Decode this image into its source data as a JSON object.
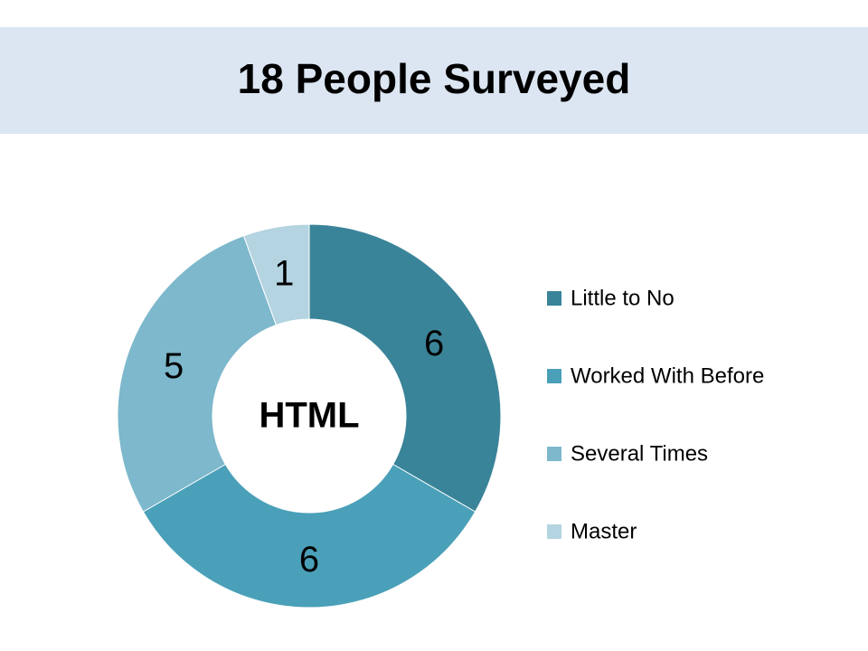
{
  "chart_data": {
    "type": "donut",
    "title": "18 People Surveyed",
    "center_label": "HTML",
    "categories": [
      "Little to No",
      "Worked With Before",
      "Several Times",
      "Master"
    ],
    "values": [
      6,
      6,
      5,
      1
    ],
    "colors": [
      "#3a8499",
      "#4aa0b8",
      "#7db8cc",
      "#b3d4e0"
    ],
    "legend": "right"
  }
}
